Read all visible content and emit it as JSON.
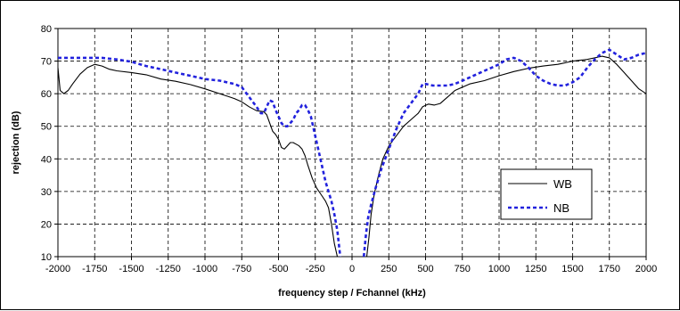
{
  "chart_data": {
    "type": "line",
    "title": "",
    "xlabel": "frequency step / Fchannel (kHz)",
    "ylabel": "rejection (dB)",
    "xlim": [
      -2000,
      2000
    ],
    "ylim": [
      10,
      80
    ],
    "x_ticks": [
      -2000,
      -1750,
      -1500,
      -1250,
      -1000,
      -750,
      -500,
      -250,
      0,
      250,
      500,
      750,
      1000,
      1250,
      1500,
      1750,
      2000
    ],
    "y_ticks": [
      10,
      20,
      30,
      40,
      50,
      60,
      70,
      80
    ],
    "grid": true,
    "grid_style": "dashed",
    "legend_position": "right",
    "series": [
      {
        "name": "WB",
        "color": "#000000",
        "style": "solid",
        "points": [
          [
            -2000,
            68
          ],
          [
            -1985,
            61
          ],
          [
            -1960,
            60
          ],
          [
            -1930,
            61
          ],
          [
            -1900,
            63
          ],
          [
            -1850,
            66
          ],
          [
            -1800,
            68
          ],
          [
            -1750,
            69
          ],
          [
            -1700,
            68.5
          ],
          [
            -1650,
            67.5
          ],
          [
            -1600,
            67
          ],
          [
            -1500,
            66.5
          ],
          [
            -1400,
            65.8
          ],
          [
            -1300,
            64.5
          ],
          [
            -1200,
            63.8
          ],
          [
            -1100,
            62.8
          ],
          [
            -1000,
            61.5
          ],
          [
            -900,
            60
          ],
          [
            -800,
            58.5
          ],
          [
            -750,
            57.5
          ],
          [
            -700,
            56
          ],
          [
            -650,
            54.8
          ],
          [
            -600,
            54.5
          ],
          [
            -580,
            53.5
          ],
          [
            -560,
            51
          ],
          [
            -540,
            48.5
          ],
          [
            -520,
            47.5
          ],
          [
            -500,
            46
          ],
          [
            -480,
            43.5
          ],
          [
            -460,
            43
          ],
          [
            -440,
            44
          ],
          [
            -420,
            45
          ],
          [
            -400,
            45
          ],
          [
            -380,
            44.5
          ],
          [
            -360,
            44
          ],
          [
            -340,
            43
          ],
          [
            -320,
            41
          ],
          [
            -300,
            38
          ],
          [
            -270,
            34
          ],
          [
            -240,
            31
          ],
          [
            -210,
            29
          ],
          [
            -180,
            27
          ],
          [
            -160,
            25
          ],
          [
            -140,
            20
          ],
          [
            -120,
            14
          ],
          [
            -100,
            10
          ]
        ]
      },
      {
        "name": "WB",
        "color": "#000000",
        "style": "solid",
        "points": [
          [
            100,
            10
          ],
          [
            115,
            16
          ],
          [
            130,
            23
          ],
          [
            150,
            29
          ],
          [
            180,
            35
          ],
          [
            210,
            40
          ],
          [
            250,
            44
          ],
          [
            300,
            47
          ],
          [
            350,
            50
          ],
          [
            400,
            52
          ],
          [
            450,
            54
          ],
          [
            480,
            56
          ],
          [
            520,
            56.8
          ],
          [
            560,
            56.5
          ],
          [
            600,
            57
          ],
          [
            650,
            59
          ],
          [
            700,
            61
          ],
          [
            800,
            63
          ],
          [
            900,
            64
          ],
          [
            1000,
            65.5
          ],
          [
            1100,
            66.8
          ],
          [
            1200,
            67.8
          ],
          [
            1300,
            68.5
          ],
          [
            1400,
            69
          ],
          [
            1500,
            70
          ],
          [
            1600,
            70.5
          ],
          [
            1700,
            71.5
          ],
          [
            1750,
            71
          ],
          [
            1800,
            69
          ],
          [
            1850,
            66.5
          ],
          [
            1900,
            64
          ],
          [
            1950,
            61.5
          ],
          [
            2000,
            60
          ]
        ]
      },
      {
        "name": "NB",
        "color": "#2222dd",
        "style": "dashed",
        "points": [
          [
            -2000,
            71
          ],
          [
            -1900,
            71
          ],
          [
            -1800,
            71
          ],
          [
            -1700,
            71
          ],
          [
            -1600,
            70.5
          ],
          [
            -1500,
            69.8
          ],
          [
            -1400,
            68.5
          ],
          [
            -1300,
            67.5
          ],
          [
            -1200,
            66.5
          ],
          [
            -1100,
            65.5
          ],
          [
            -1000,
            64.5
          ],
          [
            -900,
            64
          ],
          [
            -800,
            63
          ],
          [
            -750,
            62
          ],
          [
            -700,
            59
          ],
          [
            -650,
            56
          ],
          [
            -620,
            54
          ],
          [
            -600,
            54
          ],
          [
            -580,
            56
          ],
          [
            -560,
            58
          ],
          [
            -540,
            57.5
          ],
          [
            -520,
            55
          ],
          [
            -500,
            53
          ],
          [
            -480,
            51
          ],
          [
            -460,
            50
          ],
          [
            -440,
            50
          ],
          [
            -420,
            51
          ],
          [
            -400,
            52
          ],
          [
            -380,
            54
          ],
          [
            -360,
            55
          ],
          [
            -340,
            56.5
          ],
          [
            -320,
            56.5
          ],
          [
            -300,
            55
          ],
          [
            -280,
            53
          ],
          [
            -260,
            49
          ],
          [
            -240,
            45
          ],
          [
            -220,
            41
          ],
          [
            -200,
            37
          ],
          [
            -180,
            33
          ],
          [
            -160,
            30
          ],
          [
            -140,
            27
          ],
          [
            -120,
            23
          ],
          [
            -100,
            18
          ],
          [
            -80,
            10
          ]
        ]
      },
      {
        "name": "NB",
        "color": "#2222dd",
        "style": "dashed",
        "points": [
          [
            80,
            10
          ],
          [
            95,
            17
          ],
          [
            110,
            22
          ],
          [
            130,
            26
          ],
          [
            160,
            31
          ],
          [
            200,
            37
          ],
          [
            250,
            43
          ],
          [
            300,
            49
          ],
          [
            350,
            54
          ],
          [
            400,
            57
          ],
          [
            450,
            60
          ],
          [
            480,
            63
          ],
          [
            500,
            63
          ],
          [
            550,
            62.5
          ],
          [
            600,
            62.5
          ],
          [
            650,
            62.5
          ],
          [
            700,
            63
          ],
          [
            800,
            65
          ],
          [
            900,
            67
          ],
          [
            1000,
            69
          ],
          [
            1050,
            70.5
          ],
          [
            1100,
            71
          ],
          [
            1150,
            70
          ],
          [
            1200,
            68
          ],
          [
            1250,
            65.5
          ],
          [
            1300,
            64
          ],
          [
            1350,
            63
          ],
          [
            1400,
            62.5
          ],
          [
            1450,
            62.5
          ],
          [
            1500,
            63.5
          ],
          [
            1550,
            65
          ],
          [
            1600,
            68
          ],
          [
            1650,
            70.5
          ],
          [
            1700,
            72.5
          ],
          [
            1750,
            73.5
          ],
          [
            1800,
            72
          ],
          [
            1850,
            70.5
          ],
          [
            1900,
            71
          ],
          [
            1950,
            72
          ],
          [
            2000,
            72.5
          ]
        ]
      }
    ],
    "legend": [
      {
        "name": "WB",
        "color": "#000000",
        "style": "solid"
      },
      {
        "name": "NB",
        "color": "#2222dd",
        "style": "dashed"
      }
    ]
  }
}
